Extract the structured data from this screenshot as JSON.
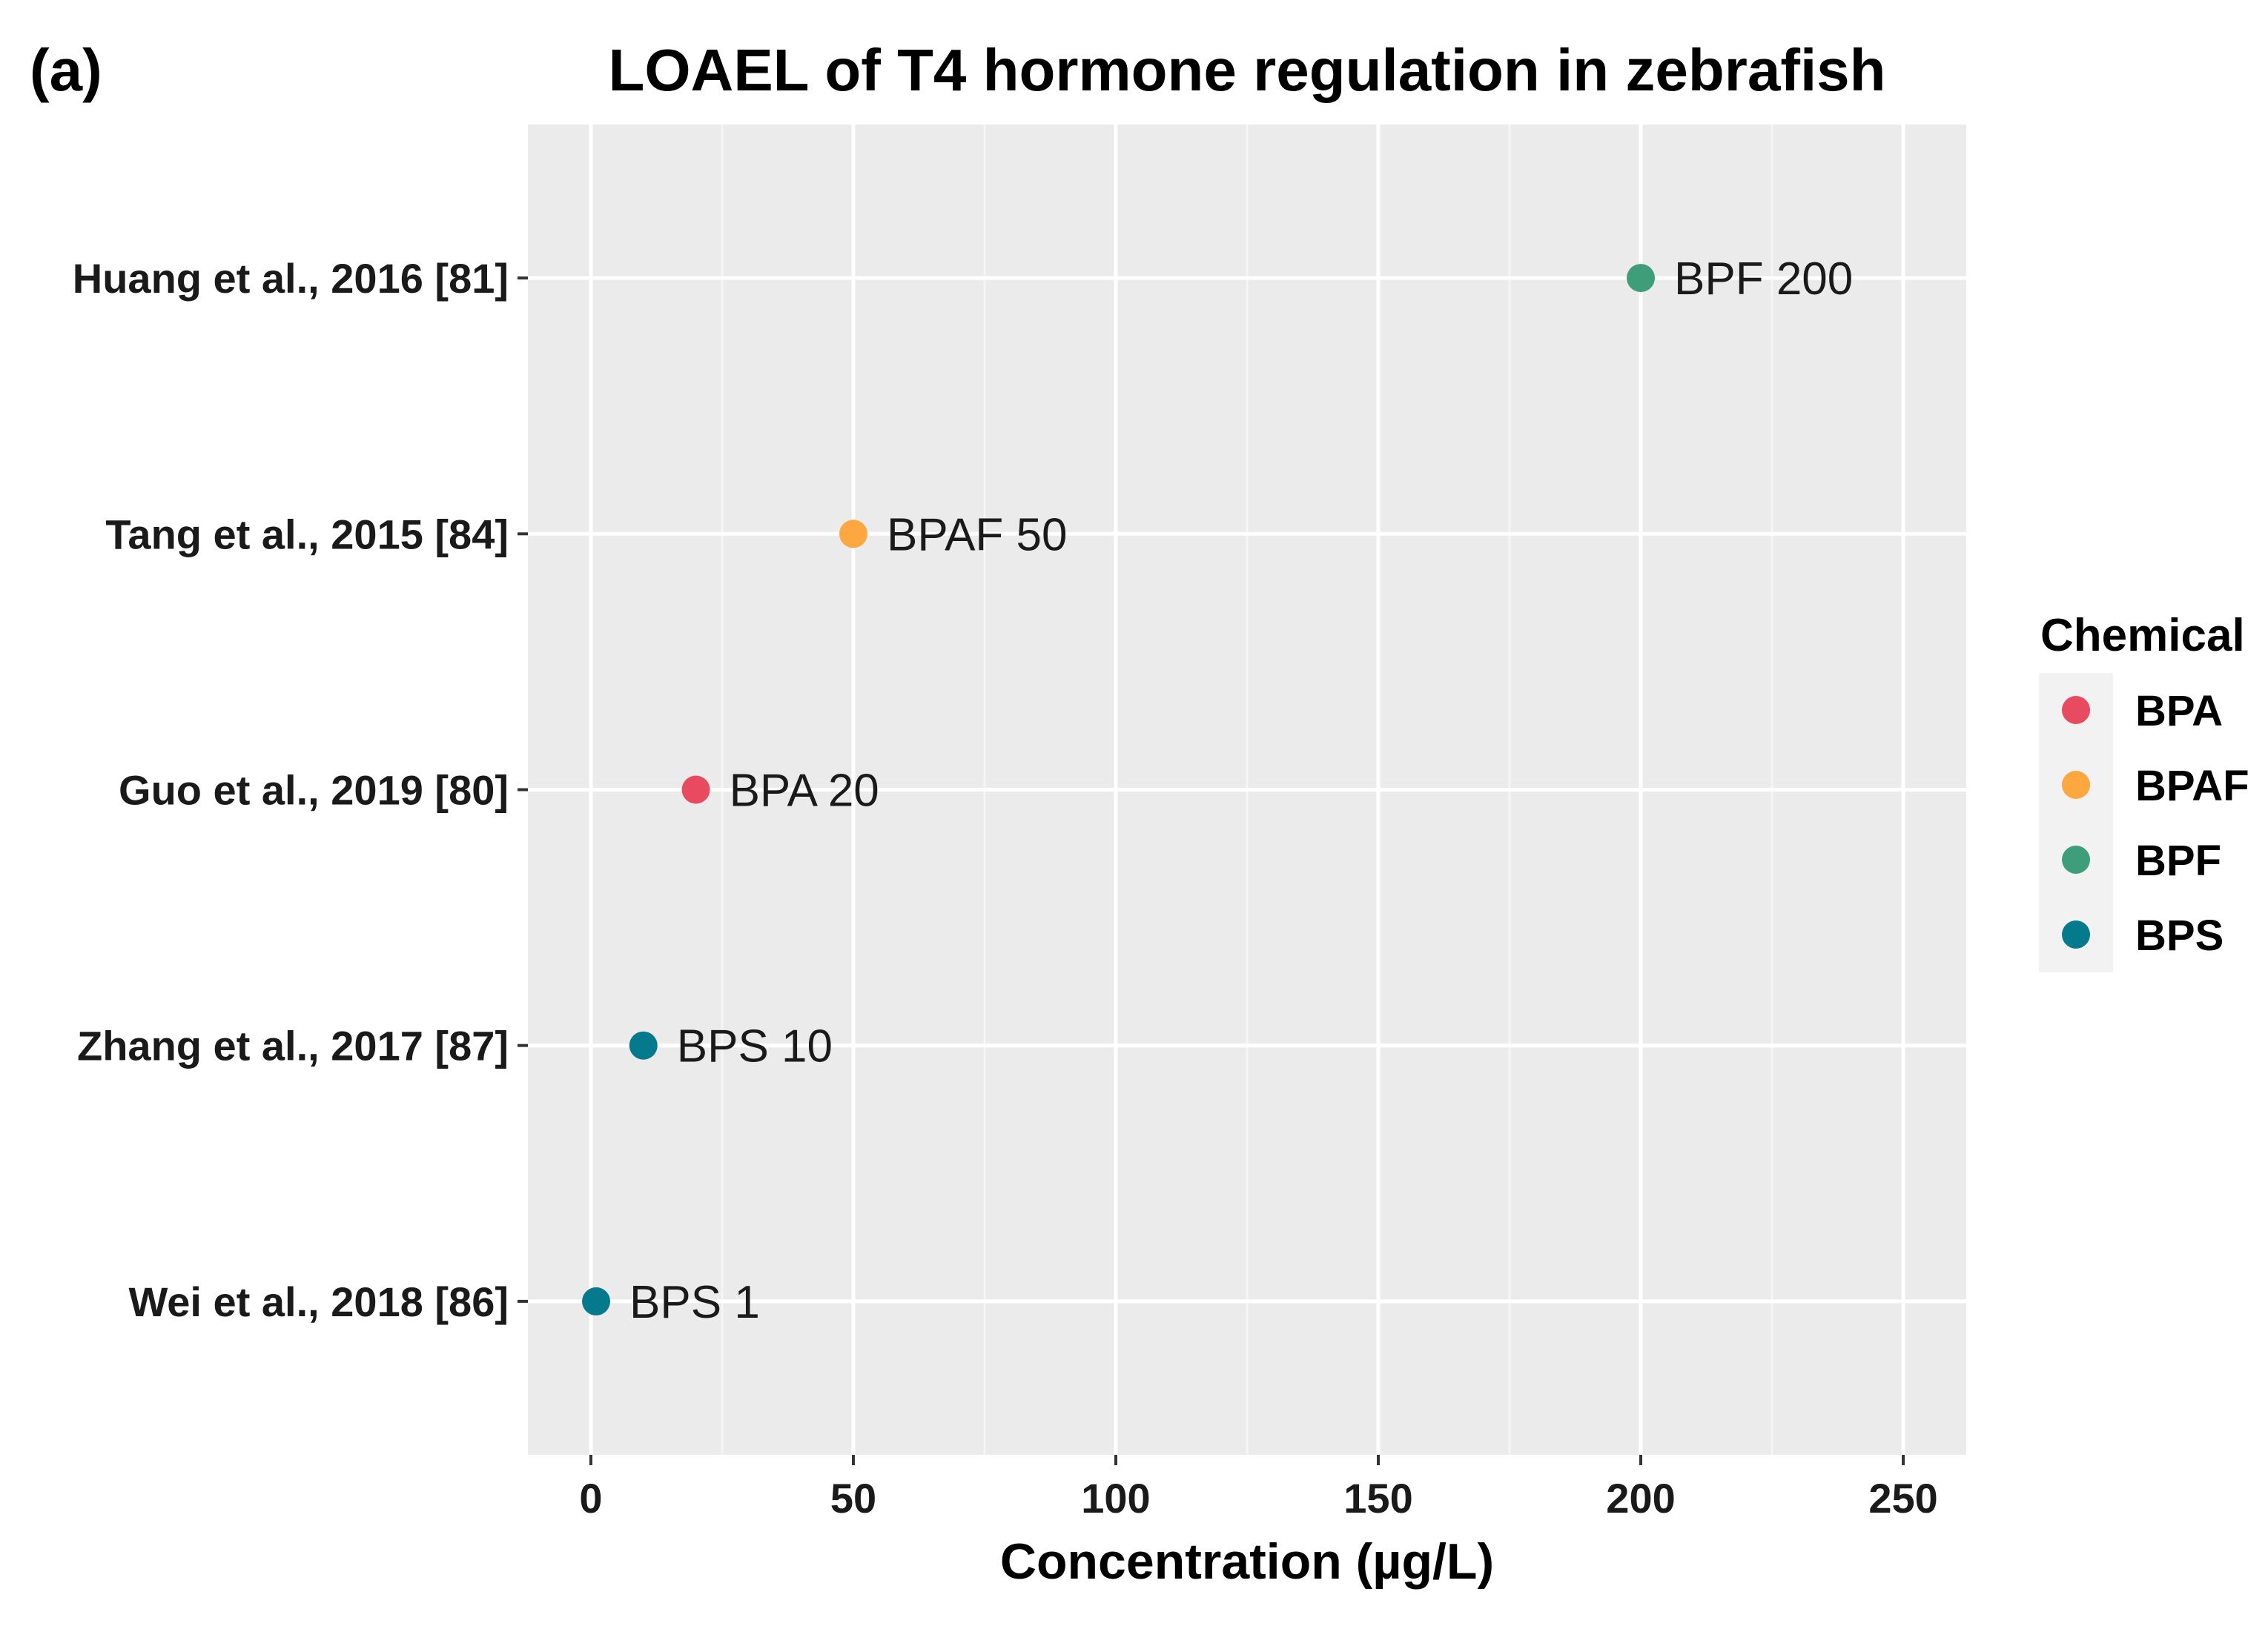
{
  "chart_data": {
    "type": "scatter",
    "panel_tag": "(a)",
    "title": "LOAEL of T4 hormone regulation in zebrafish",
    "xlabel": "Concentration (µg/L)",
    "ylabel": "",
    "xlim": [
      -12,
      262
    ],
    "x_ticks": [
      0,
      50,
      100,
      150,
      200,
      250
    ],
    "x_tick_labels": [
      "0",
      "50",
      "100",
      "150",
      "200",
      "250"
    ],
    "categories": [
      "Wei et al., 2018 [86]",
      "Zhang et al., 2017 [87]",
      "Guo et al., 2019 [80]",
      "Tang et al., 2015 [84]",
      "Huang et al., 2016 [81]"
    ],
    "points": [
      {
        "study": "Huang et al., 2016 [81]",
        "chemical": "BPF",
        "value": 200,
        "label": "BPF 200"
      },
      {
        "study": "Tang et al., 2015 [84]",
        "chemical": "BPAF",
        "value": 50,
        "label": "BPAF 50"
      },
      {
        "study": "Guo et al., 2019 [80]",
        "chemical": "BPA",
        "value": 20,
        "label": "BPA 20"
      },
      {
        "study": "Zhang et al., 2017 [87]",
        "chemical": "BPS",
        "value": 10,
        "label": "BPS 10"
      },
      {
        "study": "Wei et al., 2018 [86]",
        "chemical": "BPS",
        "value": 1,
        "label": "BPS 1"
      }
    ],
    "legend": {
      "title": "Chemical",
      "position": "right",
      "items": [
        {
          "name": "BPA",
          "color": "#e84a5f"
        },
        {
          "name": "BPAF",
          "color": "#fca73f"
        },
        {
          "name": "BPF",
          "color": "#3f9e7a"
        },
        {
          "name": "BPS",
          "color": "#057a8c"
        }
      ]
    },
    "grid": true
  },
  "colors": {
    "panel_background": "#ebebeb",
    "grid_major": "#ffffff",
    "grid_minor": "#f5f5f5",
    "tick": "#333333"
  }
}
